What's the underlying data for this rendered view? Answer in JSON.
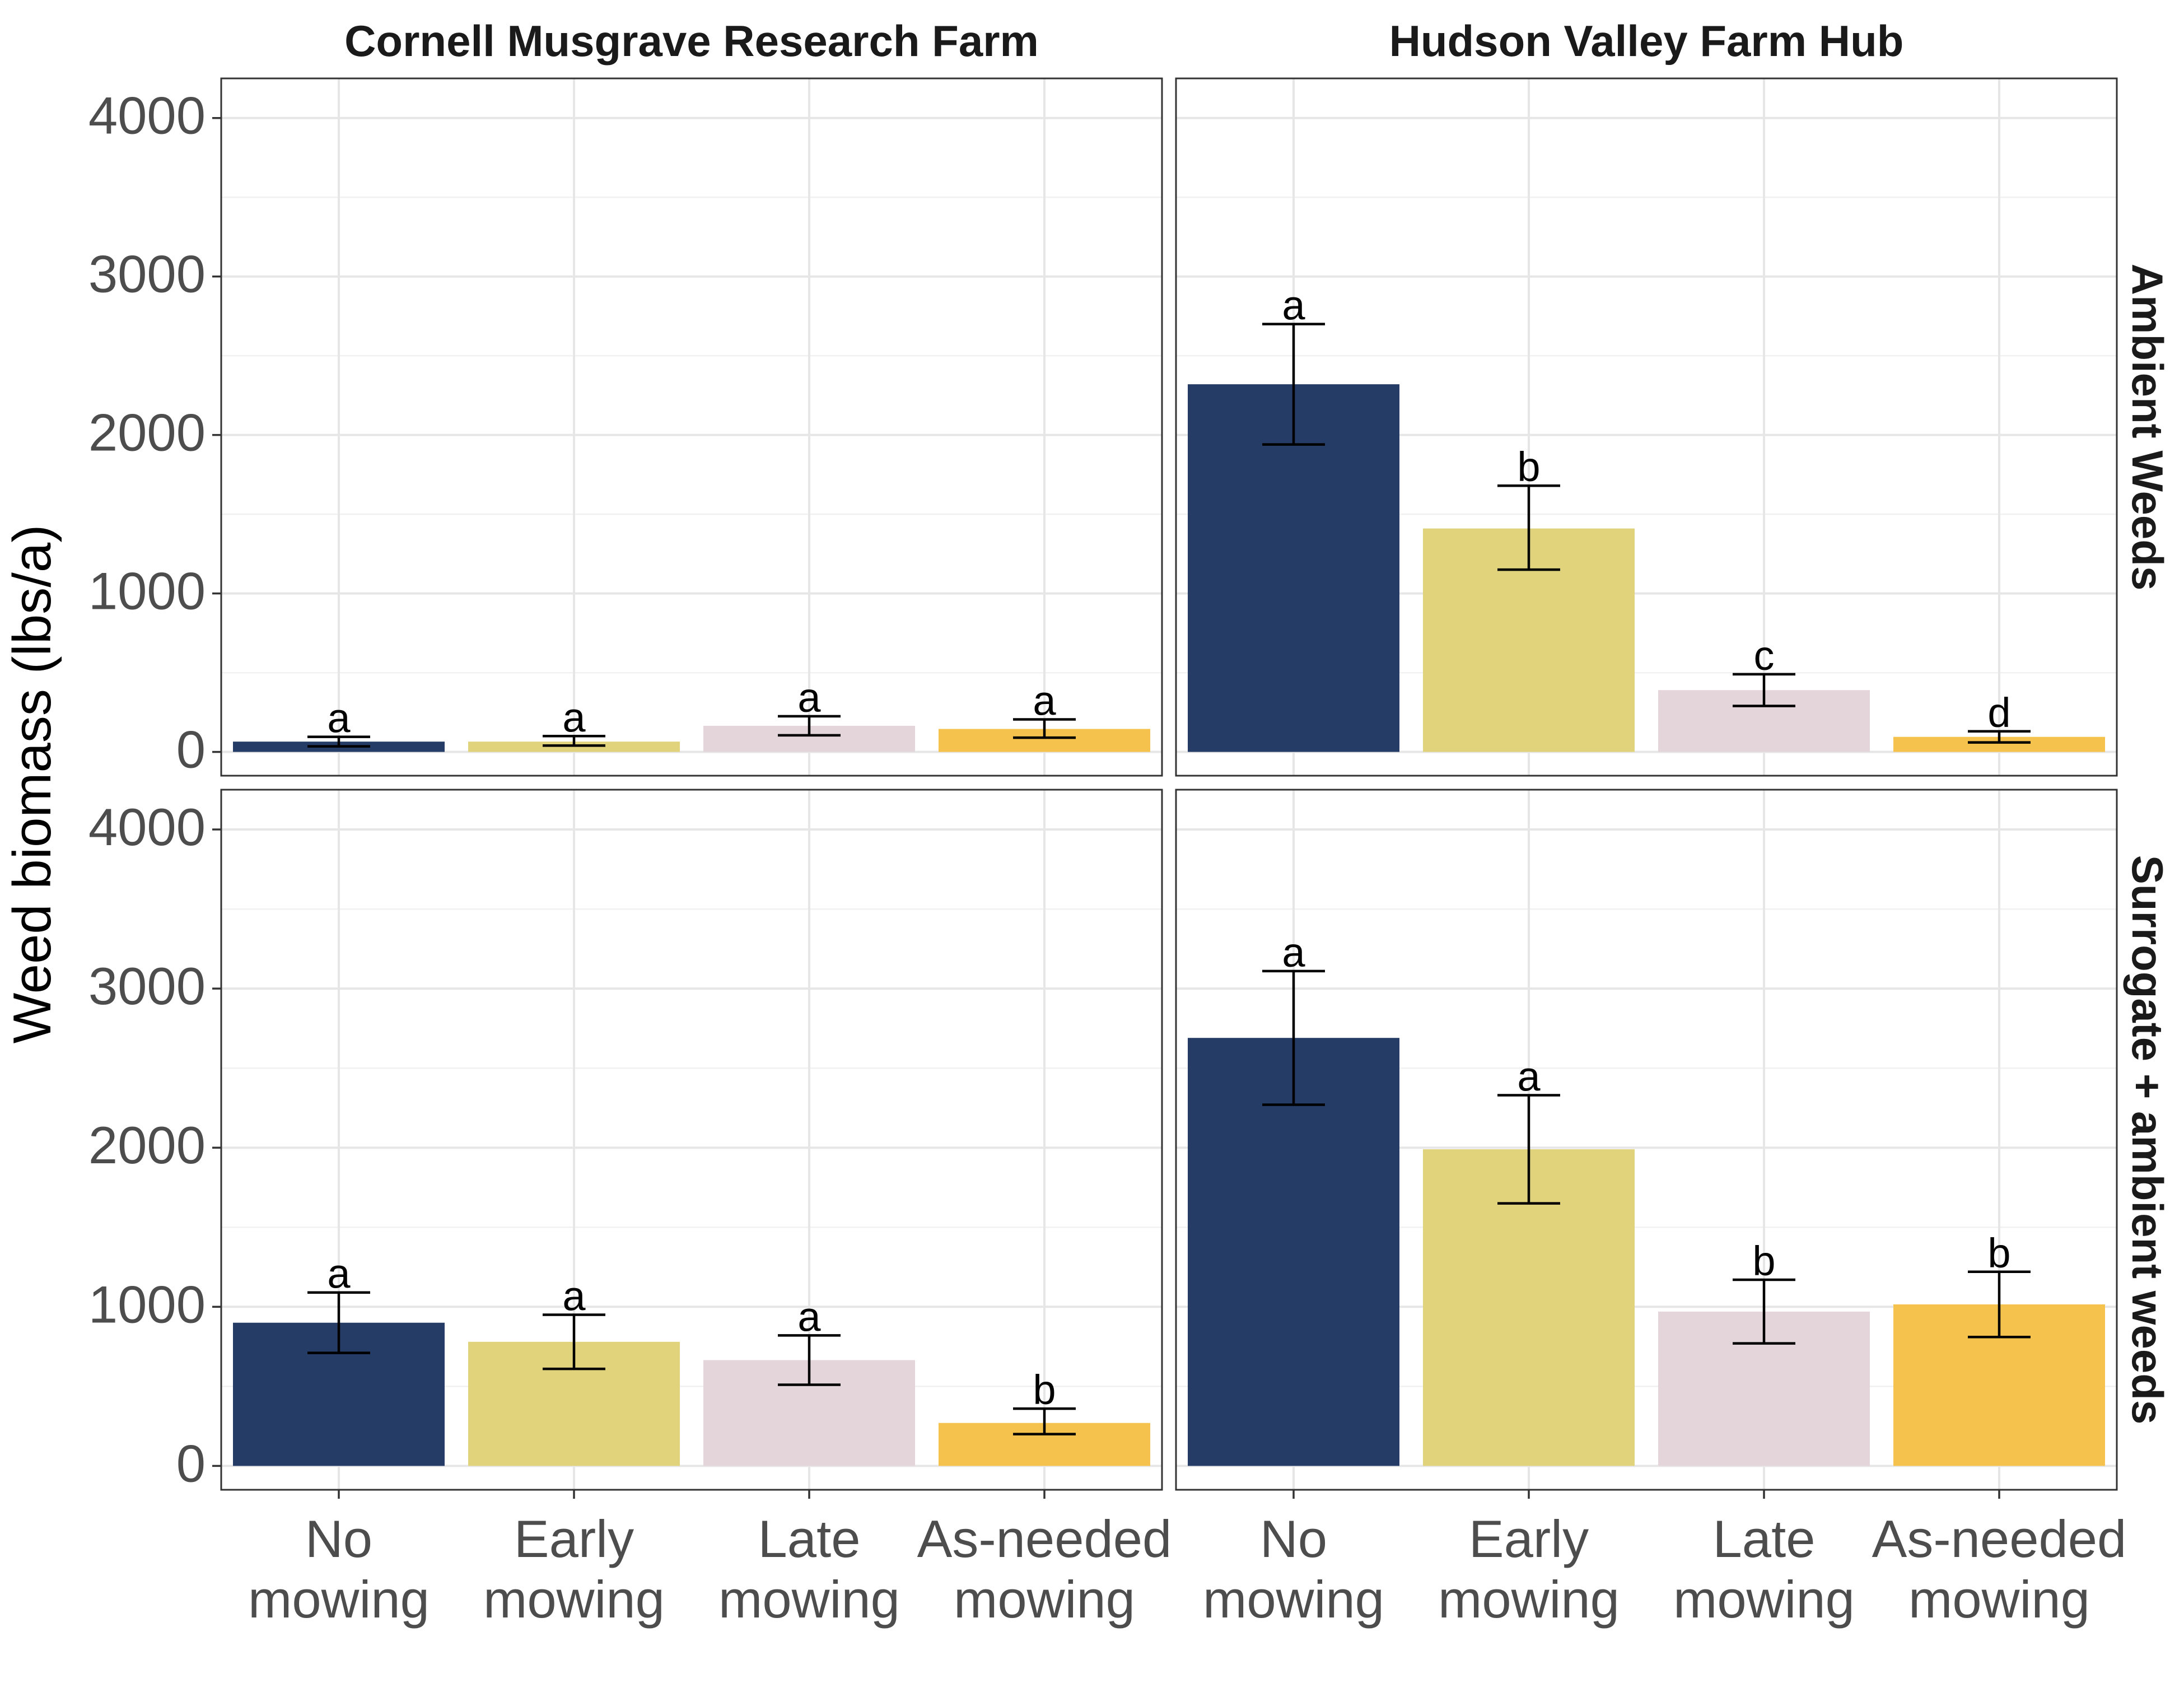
{
  "chart_data": {
    "type": "bar",
    "ylabel": "Weed biomass (lbs/a)",
    "ylim": [
      -150,
      4250
    ],
    "y_ticks": [
      0,
      1000,
      2000,
      3000,
      4000
    ],
    "grid": true,
    "categories": [
      [
        "No",
        "mowing"
      ],
      [
        "Early",
        "mowing"
      ],
      [
        "Late",
        "mowing"
      ],
      [
        "As-needed",
        "mowing"
      ]
    ],
    "colors": [
      "#253d66",
      "#e1d37c",
      "#e4d5da",
      "#f5c34d"
    ],
    "columns": [
      "Cornell Musgrave Research Farm",
      "Hudson Valley Farm Hub"
    ],
    "rows": [
      "Ambient Weeds",
      "Surrogate + ambient weeds"
    ],
    "panels": [
      {
        "column": "Cornell Musgrave Research Farm",
        "row": "Ambient Weeds",
        "values": [
          65,
          65,
          165,
          145
        ],
        "error_low": [
          35,
          40,
          105,
          90
        ],
        "error_high": [
          95,
          100,
          225,
          205
        ],
        "letters": [
          "a",
          "a",
          "a",
          "a"
        ]
      },
      {
        "column": "Hudson Valley Farm Hub",
        "row": "Ambient Weeds",
        "values": [
          2320,
          1410,
          390,
          95
        ],
        "error_low": [
          1940,
          1150,
          290,
          60
        ],
        "error_high": [
          2700,
          1680,
          490,
          130
        ],
        "letters": [
          "a",
          "b",
          "c",
          "d"
        ]
      },
      {
        "column": "Cornell Musgrave Research Farm",
        "row": "Surrogate + ambient weeds",
        "values": [
          900,
          780,
          665,
          270
        ],
        "error_low": [
          710,
          610,
          510,
          200
        ],
        "error_high": [
          1090,
          950,
          820,
          360
        ],
        "letters": [
          "a",
          "a",
          "a",
          "b"
        ]
      },
      {
        "column": "Hudson Valley Farm Hub",
        "row": "Surrogate + ambient weeds",
        "values": [
          2690,
          1990,
          970,
          1015
        ],
        "error_low": [
          2270,
          1650,
          770,
          810
        ],
        "error_high": [
          3110,
          2330,
          1170,
          1220
        ],
        "letters": [
          "a",
          "a",
          "b",
          "b"
        ]
      }
    ]
  }
}
